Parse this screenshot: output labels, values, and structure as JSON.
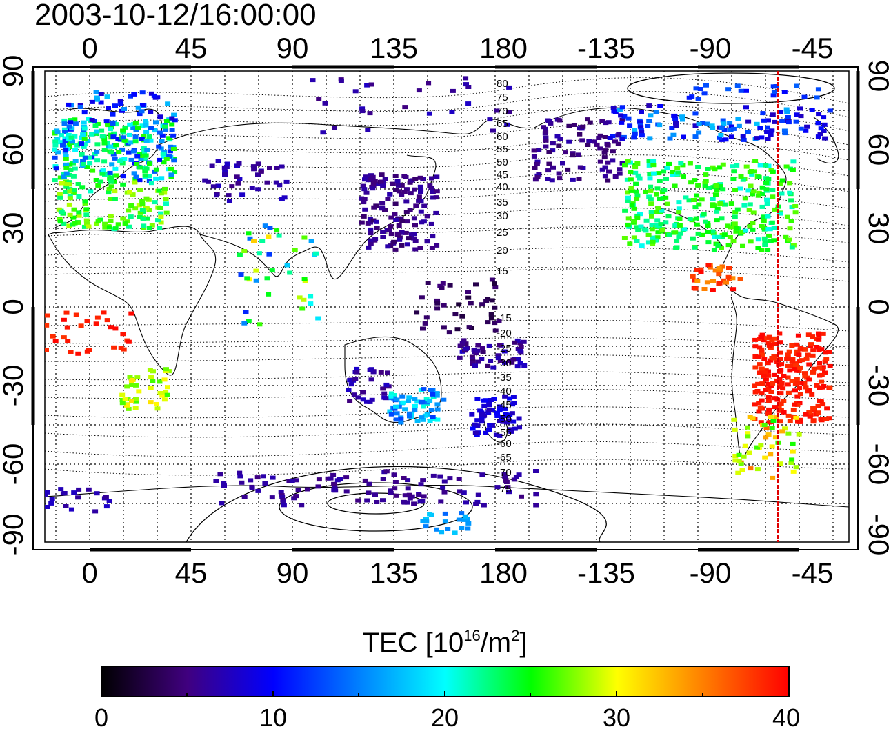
{
  "header": {
    "timestamp": "2003-10-12/16:00:00"
  },
  "map": {
    "top_ticks": [
      "0",
      "45",
      "90",
      "135",
      "180",
      "-135",
      "-90",
      "-45"
    ],
    "bottom_ticks": [
      "0",
      "45",
      "90",
      "135",
      "180",
      "-135",
      "-90",
      "-45"
    ],
    "left_ticks": [
      "90",
      "60",
      "30",
      "0",
      "-30",
      "-60",
      "-90"
    ],
    "right_ticks": [
      "90",
      "60",
      "30",
      "0",
      "-30",
      "-60",
      "-90"
    ],
    "grid": "dotted, every 15 degrees",
    "longitude_range": [
      -25,
      333
    ],
    "latitude_range": [
      -90,
      90
    ],
    "contour_labels_north": [
      "80",
      "75",
      "70",
      "65",
      "60",
      "55",
      "50",
      "45",
      "40",
      "35",
      "30",
      "25",
      "20",
      "15"
    ],
    "contour_labels_south": [
      "-15",
      "-20",
      "-25",
      "-30",
      "-35",
      "-40",
      "-45",
      "-50",
      "-55",
      "-60",
      "-65",
      "-70",
      "-75"
    ],
    "meridian_marker_longitude": -58,
    "meridian_marker_color": "#e00000"
  },
  "colorbar": {
    "title_main": "TEC  [10",
    "title_exp": "16",
    "title_unit": "/m",
    "title_exp2": "2",
    "title_close": "]",
    "tick_labels": [
      "0",
      "10",
      "20",
      "30",
      "40"
    ],
    "range": [
      0,
      40
    ],
    "colors": [
      "#000000",
      "#40007f",
      "#0000ff",
      "#00ffff",
      "#00ff00",
      "#ffff00",
      "#ff7f00",
      "#ff0000"
    ]
  }
}
